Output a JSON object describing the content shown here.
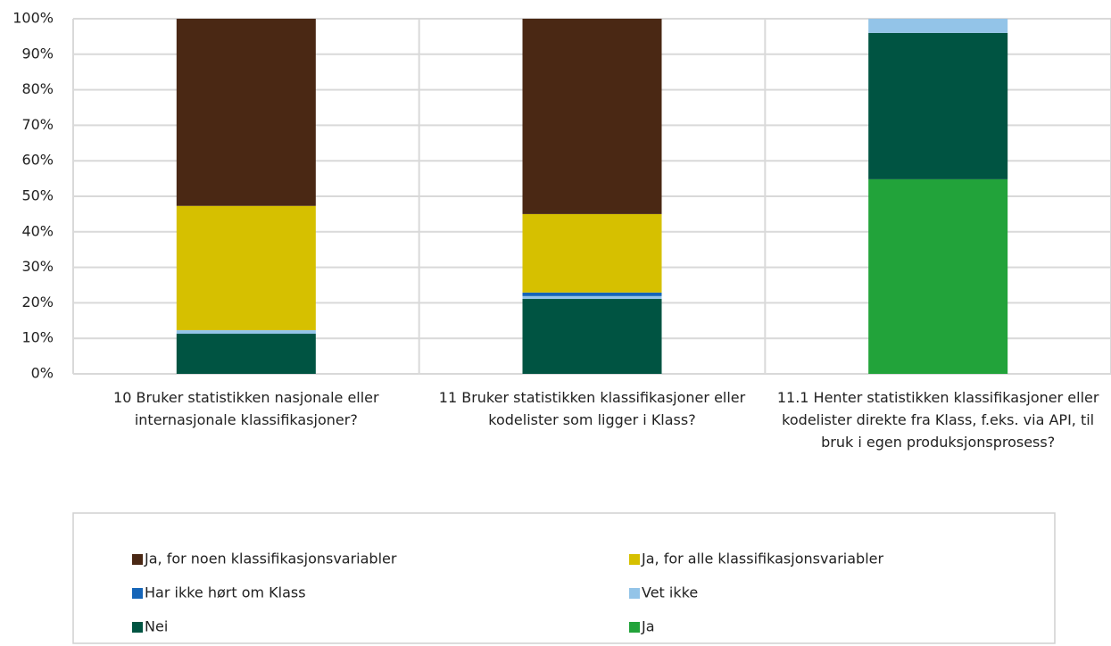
{
  "chart_data": {
    "type": "stacked_bar",
    "categories": [
      "10 Bruker statistikken nasjonale eller internasjonale klassifikasjoner?",
      "11 Bruker statistikken klassifikasjoner eller kodelister som ligger i Klass?",
      "11.1 Henter statistikken klassifikasjoner eller kodelister direkte fra Klass, f.eks. via API, til bruk i egen produksjonsprosess?"
    ],
    "series": [
      {
        "name": "Ja, for noen klassifikasjonsvariabler",
        "color": "#4a2814",
        "values": [
          52.7,
          55,
          0
        ]
      },
      {
        "name": "Ja, for alle klassifikasjonsvariabler",
        "color": "#d6c000",
        "values": [
          35,
          22.1,
          0
        ]
      },
      {
        "name": "Har ikke hørt om Klass",
        "color": "#1565b8",
        "values": [
          0,
          1,
          0
        ]
      },
      {
        "name": "Vet ikke",
        "color": "#93c4e8",
        "values": [
          1,
          0.8,
          4
        ]
      },
      {
        "name": "Nei",
        "color": "#005442",
        "values": [
          11.3,
          21.1,
          41.2
        ]
      },
      {
        "name": "Ja",
        "color": "#22a33a",
        "values": [
          0,
          0,
          54.8
        ]
      }
    ],
    "ylim": [
      0,
      100
    ],
    "yticks": [
      {
        "value": 0,
        "label": "0%"
      },
      {
        "value": 10,
        "label": "10%"
      },
      {
        "value": 20,
        "label": "20%"
      },
      {
        "value": 30,
        "label": "30%"
      },
      {
        "value": 40,
        "label": "40%"
      },
      {
        "value": 50,
        "label": "50%"
      },
      {
        "value": 60,
        "label": "60%"
      },
      {
        "value": 70,
        "label": "70%"
      },
      {
        "value": 80,
        "label": "80%"
      },
      {
        "value": 90,
        "label": "90%"
      },
      {
        "value": 100,
        "label": "100%"
      }
    ],
    "grid": true
  }
}
